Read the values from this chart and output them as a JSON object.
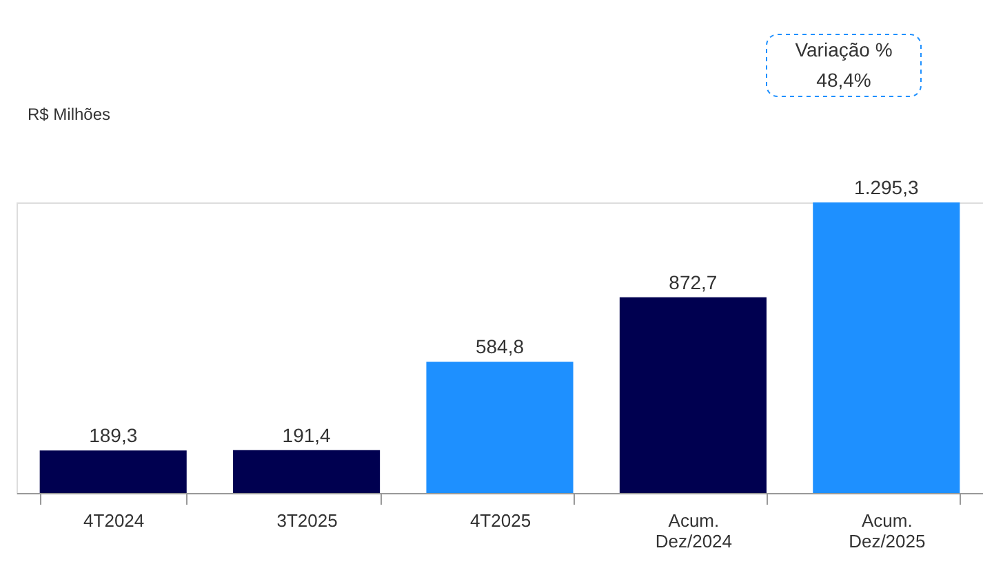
{
  "chart_data": {
    "type": "bar",
    "ylabel": "R$ Milhões",
    "categories": [
      "4T2024",
      "3T2025",
      "4T2025",
      "Acum. Dez/2024",
      "Acum. Dez/2025"
    ],
    "values": [
      189.3,
      191.4,
      584.8,
      872.7,
      1295.3
    ],
    "colors": [
      "#000050",
      "#000050",
      "#1e90ff",
      "#000050",
      "#1e90ff"
    ],
    "value_labels": [
      "189,3",
      "191,4",
      "584,8",
      "872,7",
      "1.295,3"
    ],
    "annotations": [
      "Variação %\n48,4%"
    ],
    "grid": false
  }
}
